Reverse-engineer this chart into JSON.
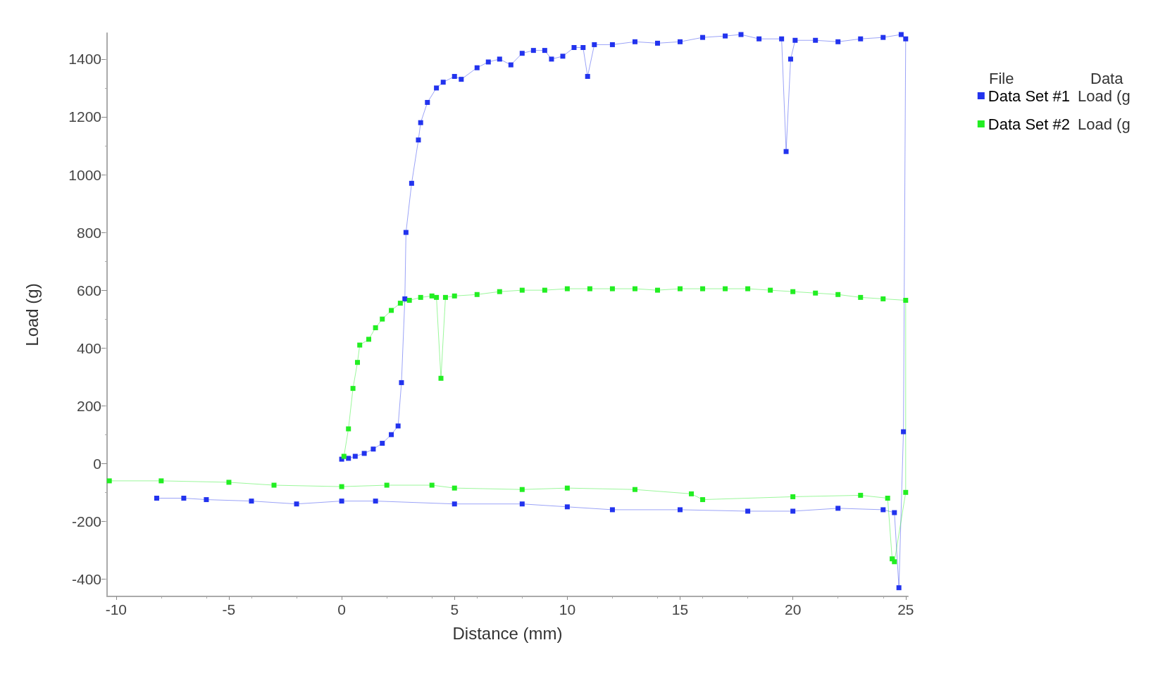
{
  "chart_data": {
    "type": "line",
    "xlabel": "Distance (mm)",
    "ylabel": "Load (g)",
    "marker": "square",
    "grid": false,
    "legend": "top right",
    "xlim": [
      -10.4,
      25.1
    ],
    "xticks": [
      -10,
      -5,
      0,
      5,
      10,
      15,
      20,
      25
    ],
    "ylim": [
      -460,
      1490
    ],
    "yticks": [
      -400,
      -200,
      0,
      200,
      400,
      600,
      800,
      1000,
      1200,
      1400
    ],
    "annotations": [
      "File",
      "Data",
      "Load (g",
      "Load (g"
    ],
    "series": [
      {
        "name": "Data Set #1",
        "color": "#2233ee",
        "x": [
          0,
          0.3,
          0.6,
          1,
          1.4,
          1.8,
          2.2,
          2.5,
          2.65,
          2.8,
          2.85,
          3.1,
          3.4,
          3.5,
          3.8,
          4.2,
          4.5,
          5,
          5.3,
          6,
          6.5,
          7,
          7.5,
          8,
          8.5,
          9,
          9.3,
          9.8,
          10.3,
          10.7,
          10.9,
          11.2,
          12,
          13,
          14,
          15,
          16,
          17,
          17.7,
          18.5,
          19.5,
          19.7,
          19.9,
          20.1,
          21,
          22,
          23,
          24,
          24.8,
          25,
          24.9,
          24.7,
          24.5,
          24,
          22,
          20,
          18,
          15,
          12,
          10,
          8,
          5,
          1.5,
          0,
          -2,
          -4,
          -6,
          -7,
          -8.2
        ],
        "values": [
          15,
          18,
          25,
          35,
          50,
          70,
          100,
          130,
          280,
          570,
          800,
          970,
          1120,
          1180,
          1250,
          1300,
          1320,
          1340,
          1330,
          1370,
          1390,
          1400,
          1380,
          1420,
          1430,
          1430,
          1400,
          1410,
          1440,
          1440,
          1340,
          1450,
          1450,
          1460,
          1455,
          1460,
          1475,
          1480,
          1485,
          1470,
          1470,
          1080,
          1400,
          1465,
          1465,
          1460,
          1470,
          1475,
          1485,
          1470,
          110,
          -430,
          -170,
          -160,
          -155,
          -165,
          -165,
          -160,
          -160,
          -150,
          -140,
          -140,
          -130,
          -130,
          -140,
          -130,
          -125,
          -120,
          -120
        ]
      },
      {
        "name": "Data Set #2",
        "color": "#22ee22",
        "x": [
          0.1,
          0.3,
          0.5,
          0.7,
          0.8,
          1.2,
          1.5,
          1.8,
          2.2,
          2.6,
          3,
          3.5,
          4,
          4.2,
          4.4,
          4.6,
          5,
          6,
          7,
          8,
          9,
          10,
          11,
          12,
          13,
          14,
          15,
          16,
          17,
          18,
          19,
          20,
          21,
          22,
          23,
          24,
          25,
          25,
          24.5,
          24.4,
          24.2,
          23,
          20,
          16,
          15.5,
          13,
          10,
          8,
          5,
          4,
          2,
          0,
          -3,
          -5,
          -8,
          -10.3
        ],
        "values": [
          25,
          120,
          260,
          350,
          410,
          430,
          470,
          500,
          530,
          555,
          565,
          575,
          580,
          575,
          295,
          575,
          580,
          585,
          595,
          600,
          600,
          605,
          605,
          605,
          605,
          600,
          605,
          605,
          605,
          605,
          600,
          595,
          590,
          585,
          575,
          570,
          565,
          -100,
          -340,
          -330,
          -120,
          -110,
          -115,
          -125,
          -105,
          -90,
          -85,
          -90,
          -85,
          -75,
          -75,
          -80,
          -75,
          -65,
          -60,
          -60
        ]
      }
    ]
  }
}
